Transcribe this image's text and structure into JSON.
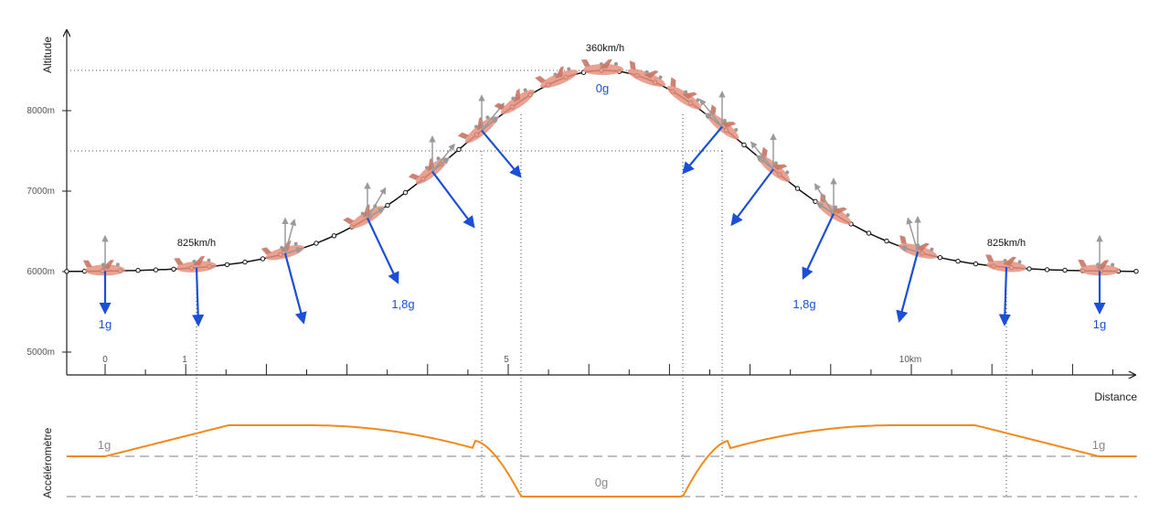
{
  "diagram": {
    "y_axis_title": "Altitude",
    "x_axis_title": "Distance",
    "accel_axis_title": "Accéléromètre",
    "altitude_ticks": [
      "8000m",
      "7000m",
      "6000m",
      "5000m"
    ],
    "distance_ticks": [
      "0",
      "1",
      "5",
      "10km"
    ],
    "speed_labels": {
      "left": "825km/h",
      "top": "360km/h",
      "right": "825km/h"
    },
    "g_labels": {
      "far_left": "1g",
      "mid_left": "1,8g",
      "top": "0g",
      "mid_right": "1,8g",
      "far_right": "1g"
    },
    "accel_labels": {
      "one_g_left": "1g",
      "one_g_right": "1g",
      "zero_g": "0g"
    },
    "colors": {
      "trajectory": "#111111",
      "force_arrow": "#1a4fd6",
      "component_arrow": "#9a9a9a",
      "accel_curve": "#f08a1c",
      "reference_dashed": "#aaaaaa",
      "aircraft": "#e8907e",
      "guide_dotted": "#444444"
    }
  }
}
